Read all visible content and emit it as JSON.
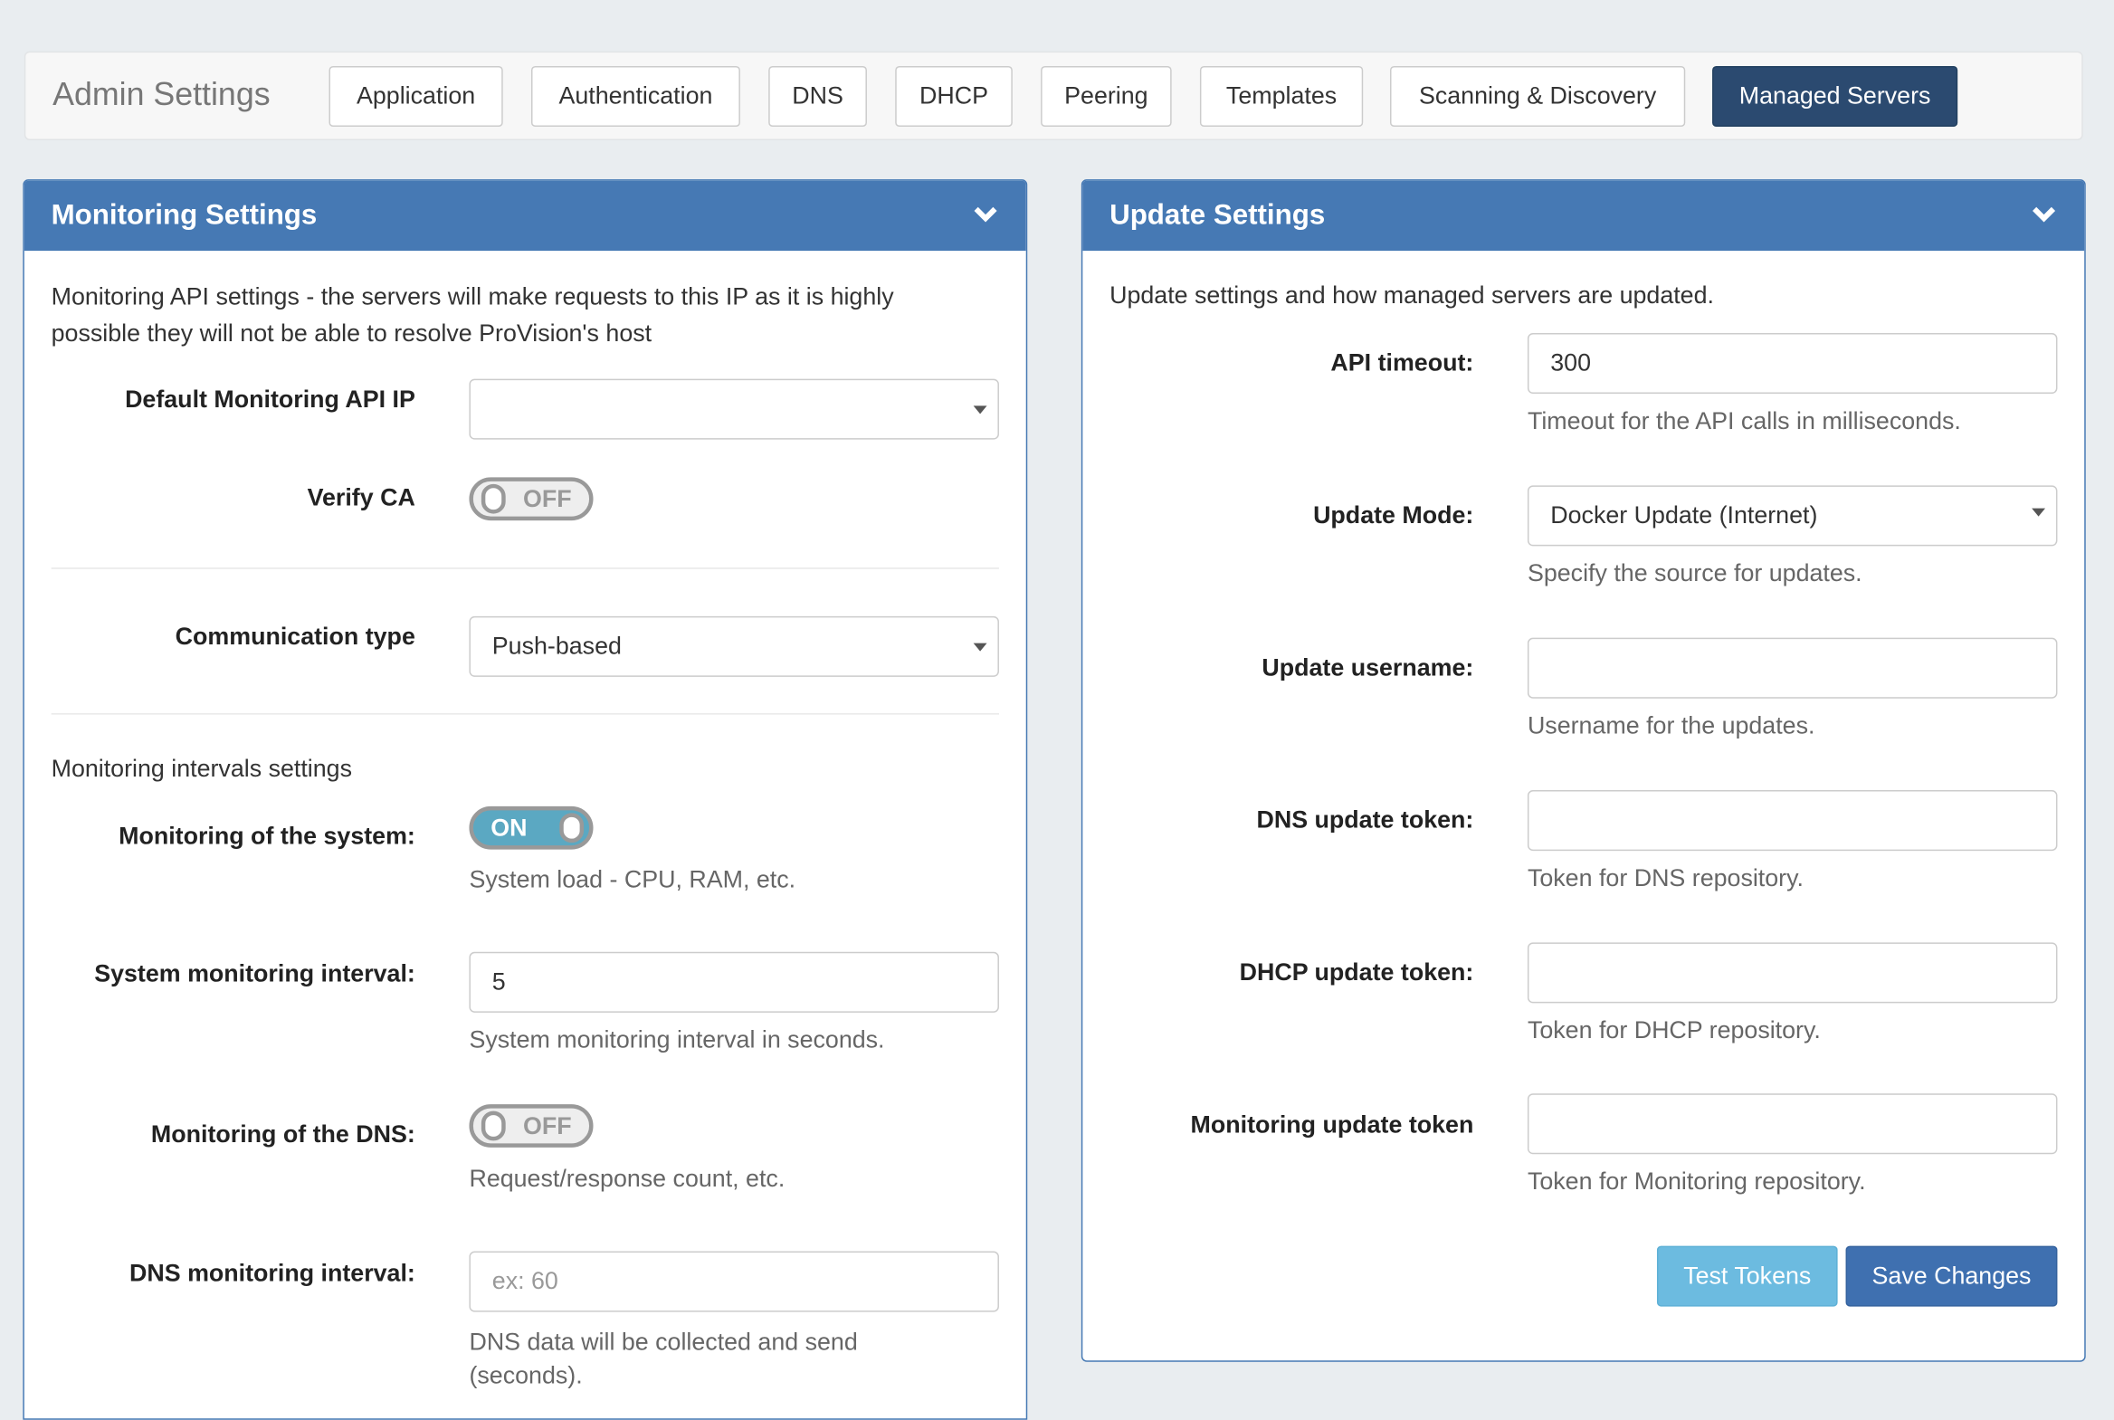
{
  "header": {
    "title": "Admin Settings",
    "tabs": [
      {
        "label": "Application",
        "active": false
      },
      {
        "label": "Authentication",
        "active": false
      },
      {
        "label": "DNS",
        "active": false
      },
      {
        "label": "DHCP",
        "active": false
      },
      {
        "label": "Peering",
        "active": false
      },
      {
        "label": "Templates",
        "active": false
      },
      {
        "label": "Scanning & Discovery",
        "active": false
      },
      {
        "label": "Managed Servers",
        "active": true
      }
    ]
  },
  "colors": {
    "panel_header": "#4679b4",
    "active_tab": "#2b4a70",
    "toggle_on": "#5ba8c2",
    "test_button": "#6cbbe0",
    "save_button": "#3f70b0"
  },
  "monitoring": {
    "title": "Monitoring Settings",
    "collapse_icon": "chevron-down-icon",
    "description": "Monitoring API settings - the servers will make requests to this IP as it is highly possible they will not be able to resolve ProVision's host",
    "default_api_ip": {
      "label": "Default Monitoring API IP",
      "value": ""
    },
    "verify_ca": {
      "label": "Verify CA",
      "state": "OFF"
    },
    "communication_type": {
      "label": "Communication type",
      "value": "Push-based"
    },
    "intervals_heading": "Monitoring intervals settings",
    "system_monitoring": {
      "label": "Monitoring of the system:",
      "state": "ON",
      "help": "System load - CPU, RAM, etc."
    },
    "system_interval": {
      "label": "System monitoring interval:",
      "value": "5",
      "help": "System monitoring interval in seconds."
    },
    "dns_monitoring": {
      "label": "Monitoring of the DNS:",
      "state": "OFF",
      "help": "Request/response count, etc."
    },
    "dns_interval": {
      "label": "DNS monitoring interval:",
      "value": "",
      "placeholder": "ex: 60",
      "help": "DNS data will be collected and send (seconds)."
    }
  },
  "update": {
    "title": "Update Settings",
    "collapse_icon": "chevron-down-icon",
    "description": "Update settings and how managed servers are updated.",
    "api_timeout": {
      "label": "API timeout:",
      "value": "300",
      "help": "Timeout for the API calls in milliseconds."
    },
    "update_mode": {
      "label": "Update Mode:",
      "value": "Docker Update (Internet)",
      "help": "Specify the source for updates."
    },
    "username": {
      "label": "Update username:",
      "value": "",
      "help": "Username for the updates."
    },
    "dns_token": {
      "label": "DNS update token:",
      "value": "",
      "help": "Token for DNS repository."
    },
    "dhcp_token": {
      "label": "DHCP update token:",
      "value": "",
      "help": "Token for DHCP repository."
    },
    "monitoring_token": {
      "label": "Monitoring update token",
      "value": "",
      "help": "Token for Monitoring repository."
    },
    "test_label": "Test Tokens",
    "save_label": "Save Changes"
  }
}
